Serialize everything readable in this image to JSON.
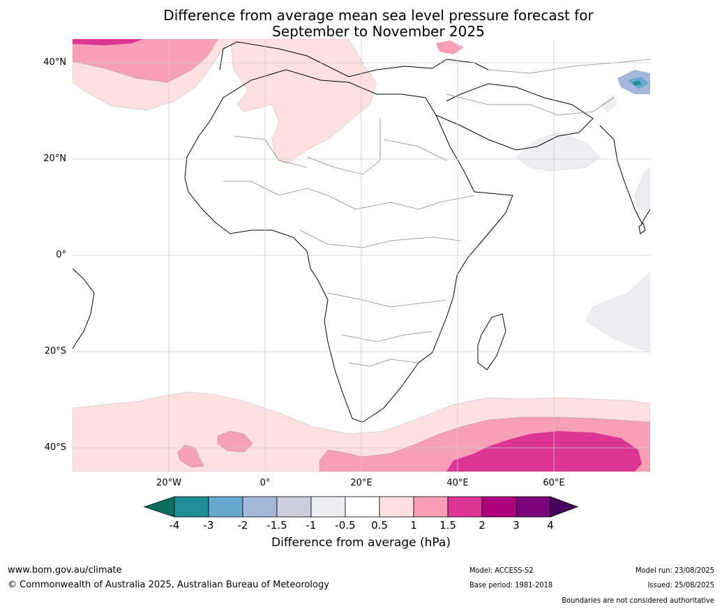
{
  "title": {
    "line1": "Difference from average mean sea level pressure forecast for",
    "line2": "September to November 2025"
  },
  "axes": {
    "lat_ticks": [
      "40°N",
      "20°N",
      "0°",
      "20°S",
      "40°S"
    ],
    "lon_ticks": [
      "20°W",
      "0°",
      "20°E",
      "40°E",
      "60°E"
    ]
  },
  "colorbar": {
    "title": "Difference from average (hPa)",
    "tick_labels": [
      "-4",
      "-3",
      "-2",
      "-1.5",
      "-1",
      "-0.5",
      "0.5",
      "1",
      "1.5",
      "2",
      "3",
      "4"
    ],
    "colors": {
      "below_-4": "#0d6d5e",
      "-4_-3": "#1e8f95",
      "-3_-2": "#68a8cf",
      "-2_-1.5": "#a3b7d8",
      "-1.5_-1": "#cccedf",
      "-1_-0.5": "#efecf2",
      "-0.5_0.5": "#ffffff",
      "0.5_1": "#fde0df",
      "1_1.5": "#f79fb7",
      "1.5_2": "#dc3596",
      "2_3": "#ad017e",
      "3_4": "#7b0279",
      "above_4": "#45005e"
    }
  },
  "footer": {
    "url": "www.bom.gov.au/climate",
    "copyright": "© Commonwealth of Australia 2025, Australian Bureau of Meteorology",
    "model": "Model: ACCESS-S2",
    "base_period": "Base period: 1981-2018",
    "model_run": "Model run: 23/08/2025",
    "issued": "Issued: 25/08/2025",
    "disclaimer": "Boundaries are not considered authoritative"
  }
}
